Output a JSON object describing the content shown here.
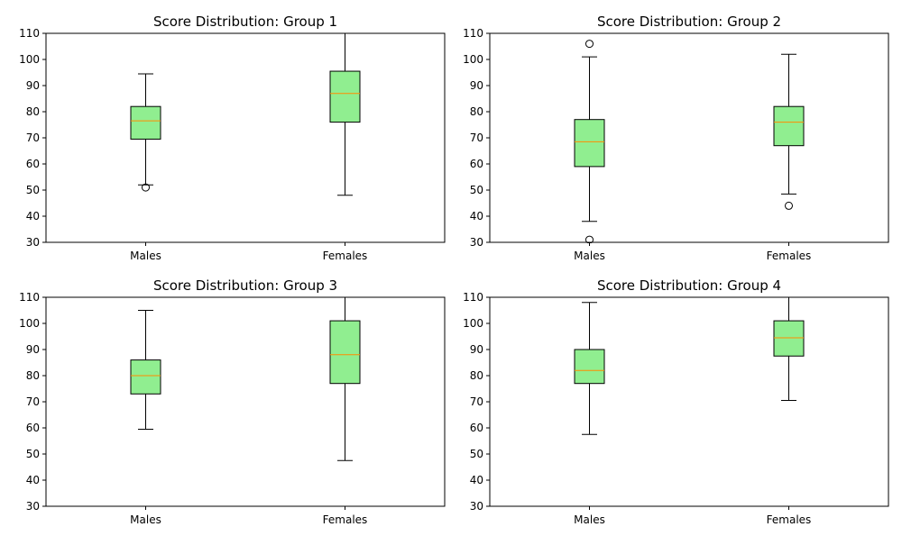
{
  "chart_data": [
    {
      "type": "box",
      "title": "Score Distribution: Group 1",
      "categories": [
        "Males",
        "Females"
      ],
      "ylim": [
        30,
        110
      ],
      "yticks": [
        30,
        40,
        50,
        60,
        70,
        80,
        90,
        100,
        110
      ],
      "grid": false,
      "boxes": [
        {
          "category": "Males",
          "whisker_low": 52,
          "q1": 69.5,
          "median": 76.5,
          "q3": 82,
          "whisker_high": 94.5,
          "outliers": [
            51
          ]
        },
        {
          "category": "Females",
          "whisker_low": 48,
          "q1": 76,
          "median": 87,
          "q3": 95.5,
          "whisker_high": 110,
          "outliers": []
        }
      ]
    },
    {
      "type": "box",
      "title": "Score Distribution: Group 2",
      "categories": [
        "Males",
        "Females"
      ],
      "ylim": [
        30,
        110
      ],
      "yticks": [
        30,
        40,
        50,
        60,
        70,
        80,
        90,
        100,
        110
      ],
      "grid": false,
      "boxes": [
        {
          "category": "Males",
          "whisker_low": 38,
          "q1": 59,
          "median": 68.5,
          "q3": 77,
          "whisker_high": 101,
          "outliers": [
            106,
            31
          ]
        },
        {
          "category": "Females",
          "whisker_low": 48.5,
          "q1": 67,
          "median": 76,
          "q3": 82,
          "whisker_high": 102,
          "outliers": [
            44
          ]
        }
      ]
    },
    {
      "type": "box",
      "title": "Score Distribution: Group 3",
      "categories": [
        "Males",
        "Females"
      ],
      "ylim": [
        30,
        110
      ],
      "yticks": [
        30,
        40,
        50,
        60,
        70,
        80,
        90,
        100,
        110
      ],
      "grid": false,
      "boxes": [
        {
          "category": "Males",
          "whisker_low": 59.5,
          "q1": 73,
          "median": 80,
          "q3": 86,
          "whisker_high": 105,
          "outliers": []
        },
        {
          "category": "Females",
          "whisker_low": 47.5,
          "q1": 77,
          "median": 88,
          "q3": 101,
          "whisker_high": 110,
          "outliers": []
        }
      ]
    },
    {
      "type": "box",
      "title": "Score Distribution: Group 4",
      "categories": [
        "Males",
        "Females"
      ],
      "ylim": [
        30,
        110
      ],
      "yticks": [
        30,
        40,
        50,
        60,
        70,
        80,
        90,
        100,
        110
      ],
      "grid": false,
      "boxes": [
        {
          "category": "Males",
          "whisker_low": 57.5,
          "q1": 77,
          "median": 82,
          "q3": 90,
          "whisker_high": 108,
          "outliers": []
        },
        {
          "category": "Females",
          "whisker_low": 70.5,
          "q1": 87.5,
          "median": 94.5,
          "q3": 101,
          "whisker_high": 110,
          "outliers": []
        }
      ]
    }
  ],
  "colors": {
    "box_fill": "#90ee90",
    "median_line": "#ff8c00",
    "axis": "#000000",
    "outlier_edge": "#000000"
  }
}
